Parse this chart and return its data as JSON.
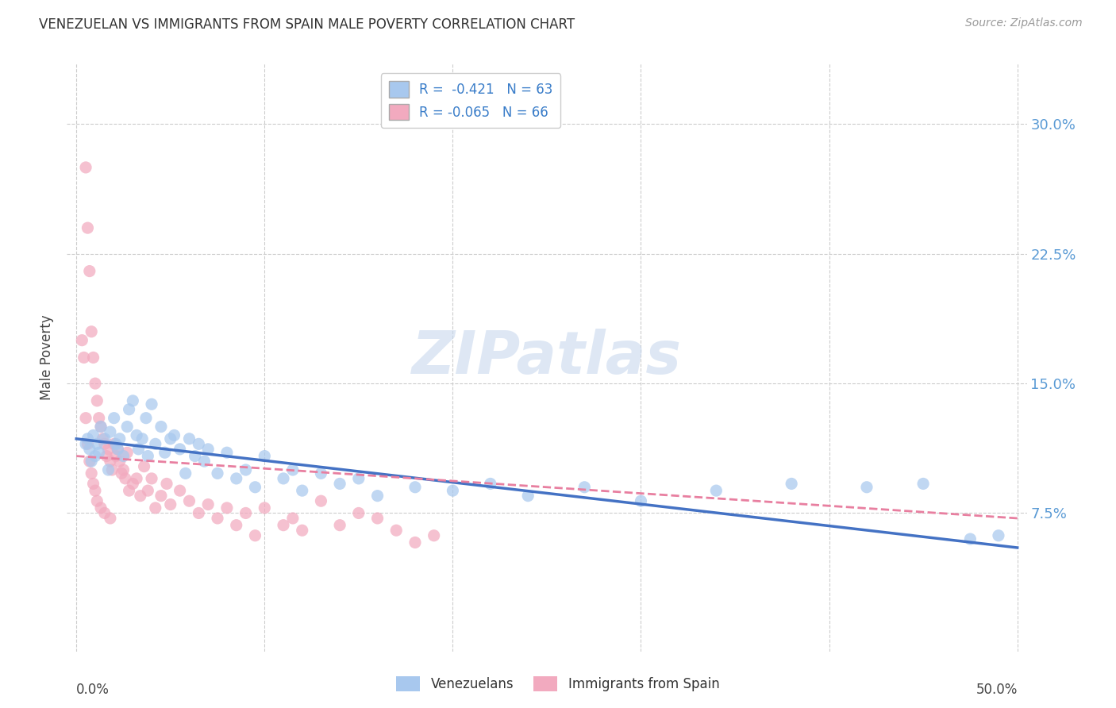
{
  "title": "VENEZUELAN VS IMMIGRANTS FROM SPAIN MALE POVERTY CORRELATION CHART",
  "source": "Source: ZipAtlas.com",
  "ylabel": "Male Poverty",
  "ytick_labels": [
    "7.5%",
    "15.0%",
    "22.5%",
    "30.0%"
  ],
  "ytick_values": [
    0.075,
    0.15,
    0.225,
    0.3
  ],
  "xlim": [
    -0.005,
    0.505
  ],
  "ylim": [
    -0.005,
    0.335
  ],
  "watermark": "ZIPatlas",
  "legend_blue_r": "R =  -0.421",
  "legend_blue_n": "N = 63",
  "legend_pink_r": "R = -0.065",
  "legend_pink_n": "N = 66",
  "blue_color": "#A8C8EE",
  "pink_color": "#F2AABF",
  "blue_line_color": "#4472C4",
  "pink_line_color": "#E87FA0",
  "venezuelans_x": [
    0.005,
    0.006,
    0.007,
    0.008,
    0.009,
    0.01,
    0.011,
    0.012,
    0.013,
    0.015,
    0.017,
    0.018,
    0.02,
    0.021,
    0.022,
    0.023,
    0.025,
    0.027,
    0.028,
    0.03,
    0.032,
    0.033,
    0.035,
    0.037,
    0.038,
    0.04,
    0.042,
    0.045,
    0.047,
    0.05,
    0.052,
    0.055,
    0.058,
    0.06,
    0.063,
    0.065,
    0.068,
    0.07,
    0.075,
    0.08,
    0.085,
    0.09,
    0.095,
    0.1,
    0.11,
    0.115,
    0.12,
    0.13,
    0.14,
    0.15,
    0.16,
    0.18,
    0.2,
    0.22,
    0.24,
    0.27,
    0.3,
    0.34,
    0.38,
    0.42,
    0.45,
    0.475,
    0.49
  ],
  "venezuelans_y": [
    0.115,
    0.118,
    0.112,
    0.105,
    0.12,
    0.108,
    0.115,
    0.11,
    0.125,
    0.118,
    0.1,
    0.122,
    0.13,
    0.115,
    0.112,
    0.118,
    0.108,
    0.125,
    0.135,
    0.14,
    0.12,
    0.112,
    0.118,
    0.13,
    0.108,
    0.138,
    0.115,
    0.125,
    0.11,
    0.118,
    0.12,
    0.112,
    0.098,
    0.118,
    0.108,
    0.115,
    0.105,
    0.112,
    0.098,
    0.11,
    0.095,
    0.1,
    0.09,
    0.108,
    0.095,
    0.1,
    0.088,
    0.098,
    0.092,
    0.095,
    0.085,
    0.09,
    0.088,
    0.092,
    0.085,
    0.09,
    0.082,
    0.088,
    0.092,
    0.09,
    0.092,
    0.06,
    0.062
  ],
  "spain_x": [
    0.003,
    0.004,
    0.005,
    0.005,
    0.006,
    0.006,
    0.007,
    0.007,
    0.008,
    0.008,
    0.009,
    0.009,
    0.01,
    0.01,
    0.011,
    0.011,
    0.012,
    0.013,
    0.013,
    0.014,
    0.015,
    0.015,
    0.016,
    0.017,
    0.018,
    0.018,
    0.019,
    0.02,
    0.021,
    0.022,
    0.023,
    0.024,
    0.025,
    0.026,
    0.027,
    0.028,
    0.03,
    0.032,
    0.034,
    0.036,
    0.038,
    0.04,
    0.042,
    0.045,
    0.048,
    0.05,
    0.055,
    0.06,
    0.065,
    0.07,
    0.075,
    0.08,
    0.085,
    0.09,
    0.095,
    0.1,
    0.11,
    0.115,
    0.12,
    0.13,
    0.14,
    0.15,
    0.16,
    0.17,
    0.18,
    0.19
  ],
  "spain_y": [
    0.175,
    0.165,
    0.275,
    0.13,
    0.24,
    0.115,
    0.215,
    0.105,
    0.18,
    0.098,
    0.165,
    0.092,
    0.15,
    0.088,
    0.14,
    0.082,
    0.13,
    0.125,
    0.078,
    0.118,
    0.115,
    0.075,
    0.108,
    0.112,
    0.105,
    0.072,
    0.1,
    0.115,
    0.108,
    0.112,
    0.105,
    0.098,
    0.1,
    0.095,
    0.11,
    0.088,
    0.092,
    0.095,
    0.085,
    0.102,
    0.088,
    0.095,
    0.078,
    0.085,
    0.092,
    0.08,
    0.088,
    0.082,
    0.075,
    0.08,
    0.072,
    0.078,
    0.068,
    0.075,
    0.062,
    0.078,
    0.068,
    0.072,
    0.065,
    0.082,
    0.068,
    0.075,
    0.072,
    0.065,
    0.058,
    0.062
  ],
  "blue_trend_x": [
    0.0,
    0.5
  ],
  "blue_trend_y": [
    0.118,
    0.055
  ],
  "pink_trend_x": [
    0.0,
    0.5
  ],
  "pink_trend_y": [
    0.108,
    0.072
  ],
  "grid_color": "#CCCCCC",
  "title_fontsize": 12,
  "source_fontsize": 10,
  "ylabel_fontsize": 12,
  "tick_label_fontsize": 13,
  "legend_fontsize": 12,
  "watermark_fontsize": 54,
  "watermark_color": "#C8D8EE",
  "scatter_size": 120,
  "scatter_alpha": 0.72
}
